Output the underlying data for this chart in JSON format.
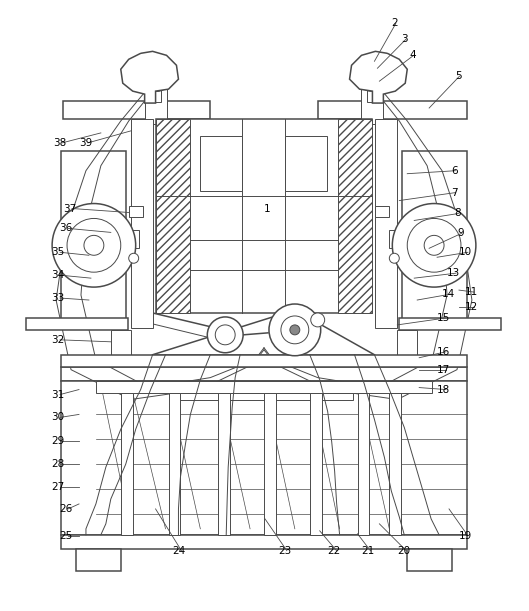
{
  "bg_color": "#ffffff",
  "lc": "#4a4a4a",
  "lw": 0.7,
  "lw2": 1.1,
  "fig_width": 5.29,
  "fig_height": 6.11,
  "dpi": 100
}
